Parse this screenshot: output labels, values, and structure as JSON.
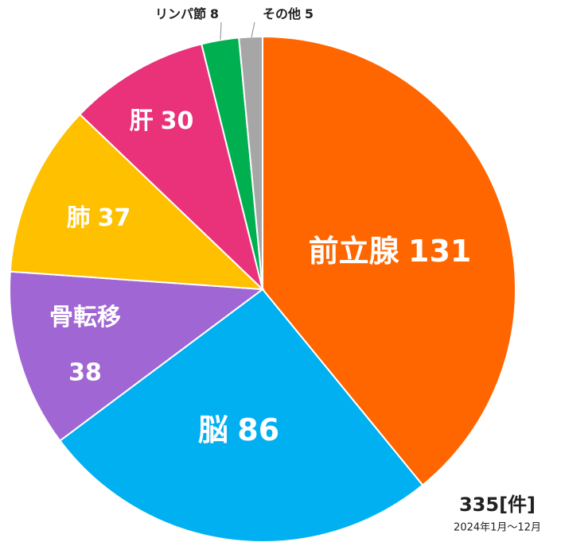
{
  "chart_data": {
    "type": "pie",
    "categories": [
      "前立腺",
      "脳",
      "骨転移",
      "肺",
      "肝",
      "リンパ節",
      "その他"
    ],
    "values": [
      131,
      86,
      38,
      37,
      30,
      8,
      5
    ],
    "colors": [
      "#FF6600",
      "#00B0F0",
      "#A066D3",
      "#FFC000",
      "#E9327A",
      "#00B050",
      "#A6A6A6"
    ],
    "total_label": "335[件]",
    "subtitle": "2024年1月～12月"
  }
}
